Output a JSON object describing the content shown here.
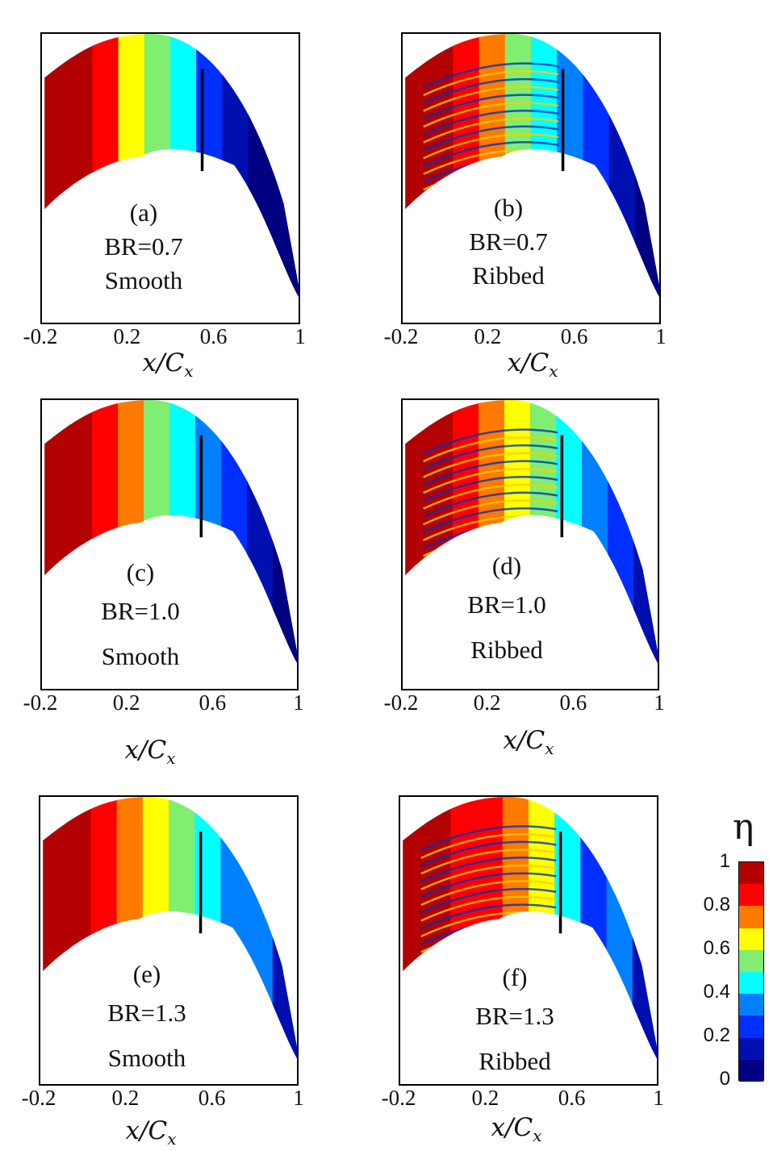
{
  "chart_data": [
    {
      "type": "heatmap",
      "panel": "(a)",
      "br_label": "BR=0.7",
      "surface": "Smooth",
      "xlabel": "x/C",
      "xlabel_sub": "x",
      "xticks": [
        "-0.2",
        "0.2",
        "0.6",
        "1"
      ],
      "xlim": [
        -0.2,
        1.0
      ],
      "bands": [
        1.0,
        0.95,
        0.82,
        0.7,
        0.55,
        0.42,
        0.3,
        0.2,
        0.1,
        0.05
      ],
      "ribbed": false
    },
    {
      "type": "heatmap",
      "panel": "(b)",
      "br_label": "BR=0.7",
      "surface": "Ribbed",
      "xlabel": "x/C",
      "xlabel_sub": "x",
      "xticks": [
        "-0.2",
        "0.2",
        "0.6",
        "1"
      ],
      "xlim": [
        -0.2,
        1.0
      ],
      "bands": [
        1.0,
        0.95,
        0.85,
        0.72,
        0.6,
        0.5,
        0.38,
        0.3,
        0.2,
        0.1
      ],
      "ribbed": true
    },
    {
      "type": "heatmap",
      "panel": "(c)",
      "br_label": "BR=1.0",
      "surface": "Smooth",
      "xlabel": "x/C",
      "xlabel_sub": "x",
      "xticks": [
        "-0.2",
        "0.2",
        "0.6",
        "1"
      ],
      "xlim": [
        -0.2,
        1.0
      ],
      "bands": [
        1.0,
        0.95,
        0.85,
        0.72,
        0.6,
        0.5,
        0.4,
        0.3,
        0.2,
        0.1
      ],
      "ribbed": false
    },
    {
      "type": "heatmap",
      "panel": "(d)",
      "br_label": "BR=1.0",
      "surface": "Ribbed",
      "xlabel": "x/C",
      "xlabel_sub": "x",
      "xticks": [
        "-0.2",
        "0.2",
        "0.6",
        "1"
      ],
      "xlim": [
        -0.2,
        1.0
      ],
      "bands": [
        1.0,
        0.95,
        0.88,
        0.78,
        0.7,
        0.6,
        0.48,
        0.35,
        0.25,
        0.12
      ],
      "ribbed": true
    },
    {
      "type": "heatmap",
      "panel": "(e)",
      "br_label": "BR=1.3",
      "surface": "Smooth",
      "xlabel": "x/C",
      "xlabel_sub": "x",
      "xticks": [
        "-0.2",
        "0.2",
        "0.6",
        "1"
      ],
      "xlim": [
        -0.2,
        1.0
      ],
      "bands": [
        1.0,
        0.95,
        0.85,
        0.75,
        0.65,
        0.55,
        0.48,
        0.4,
        0.32,
        0.2
      ],
      "ribbed": false
    },
    {
      "type": "heatmap",
      "panel": "(f)",
      "br_label": "BR=1.3",
      "surface": "Ribbed",
      "xlabel": "x/C",
      "xlabel_sub": "x",
      "xticks": [
        "-0.2",
        "0.2",
        "0.6",
        "1"
      ],
      "xlim": [
        -0.2,
        1.0
      ],
      "bands": [
        1.0,
        0.95,
        0.88,
        0.8,
        0.72,
        0.62,
        0.42,
        0.3,
        0.32,
        0.2
      ],
      "ribbed": true
    }
  ],
  "colorbar": {
    "title": "η",
    "ticks": [
      "1",
      "0.8",
      "0.6",
      "0.4",
      "0.2",
      "0"
    ],
    "range": [
      0,
      1
    ],
    "colors": [
      "#b30000",
      "#ff0000",
      "#ff7a00",
      "#ffff00",
      "#80ee70",
      "#00ffff",
      "#0080ff",
      "#0030ff",
      "#0010b0",
      "#000080"
    ]
  }
}
